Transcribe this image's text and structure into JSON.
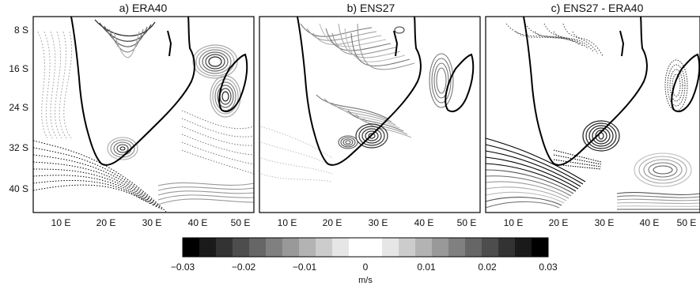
{
  "panels": [
    {
      "title": "a) ERA40"
    },
    {
      "title": "b) ENS27"
    },
    {
      "title": "c) ENS27 - ERA40"
    }
  ],
  "lat_ticks": [
    "8 S",
    "16 S",
    "24 S",
    "32 S",
    "40 S"
  ],
  "lon_ticks": [
    "10 E",
    "20 E",
    "30 E",
    "40 E",
    "50 E"
  ],
  "colorbar": {
    "ticks": [
      "−0.03",
      "−0.02",
      "−0.01",
      "0",
      "0.01",
      "0.02",
      "0.03"
    ],
    "unit": "m/s",
    "levels": [
      "#000000",
      "#1a1a1a",
      "#333333",
      "#4d4d4d",
      "#666666",
      "#808080",
      "#999999",
      "#b3b3b3",
      "#cccccc",
      "#e6e6e6",
      "#ffffff",
      "#ffffff",
      "#e6e6e6",
      "#cccccc",
      "#b3b3b3",
      "#999999",
      "#808080",
      "#666666",
      "#4d4d4d",
      "#333333",
      "#1a1a1a",
      "#000000"
    ]
  },
  "colors": {
    "coast": "#000000",
    "frame": "#000000"
  }
}
